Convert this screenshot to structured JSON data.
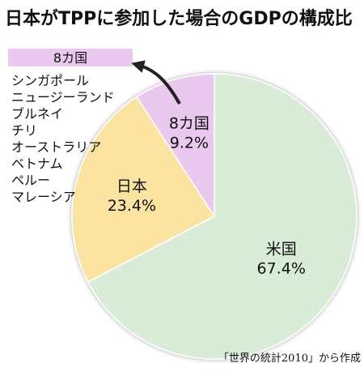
{
  "chart_data": {
    "type": "pie",
    "title": "日本がTPPに参加した場合のGDPの構成比",
    "slices": [
      {
        "label": "8カ国",
        "value": 9.2,
        "value_label": "9.2%",
        "color": "#e9c9ee"
      },
      {
        "label": "日本",
        "value": 23.4,
        "value_label": "23.4%",
        "color": "#fbe3a1"
      },
      {
        "label": "米国",
        "value": 67.4,
        "value_label": "67.4%",
        "color": "#d8ecd7"
      }
    ],
    "start_angle_deg": 0,
    "direction": "counterclockwise",
    "callout": {
      "label": "8カ国",
      "color": "#e9c9ee",
      "members": [
        "シンガポール",
        "ニュージーランド",
        "ブルネイ",
        "チリ",
        "オーストラリア",
        "ベトナム",
        "ペルー",
        "マレーシア"
      ]
    },
    "source": "「世界の統計2010」から作成"
  }
}
